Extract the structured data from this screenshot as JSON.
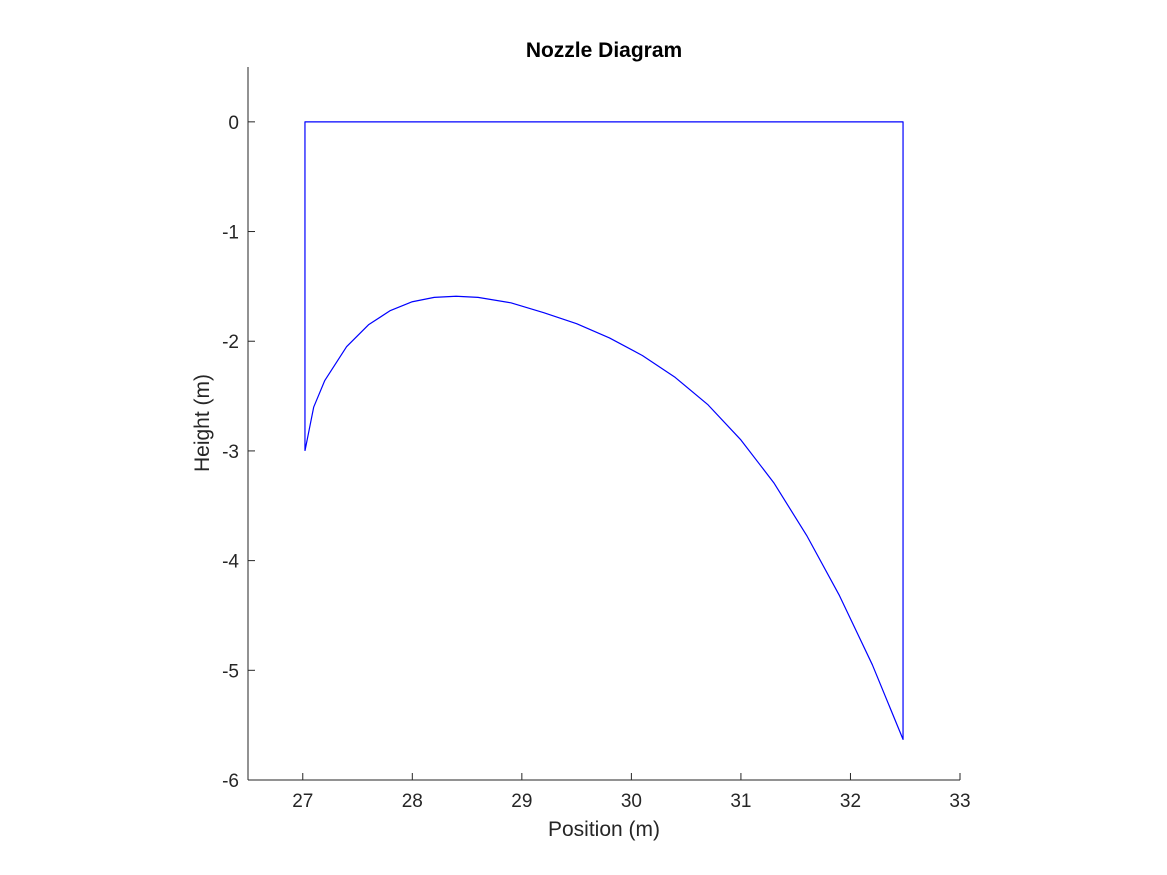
{
  "chart_data": {
    "type": "line",
    "title": "Nozzle Diagram",
    "xlabel": "Position (m)",
    "ylabel": "Height (m)",
    "xlim": [
      26.5,
      33
    ],
    "ylim": [
      -6,
      0.5
    ],
    "xticks": [
      27,
      28,
      29,
      30,
      31,
      32,
      33
    ],
    "yticks": [
      0,
      -1,
      -2,
      -3,
      -4,
      -5,
      -6
    ],
    "xtick_labels": [
      "27",
      "28",
      "29",
      "30",
      "31",
      "32",
      "33"
    ],
    "ytick_labels": [
      "0",
      "-1",
      "-2",
      "-3",
      "-4",
      "-5",
      "-6"
    ],
    "grid": false,
    "series": [
      {
        "color": "#0000ff",
        "x": [
          27.02,
          27.02,
          32.48,
          32.48,
          32.2,
          31.9,
          31.6,
          31.3,
          31.0,
          30.7,
          30.4,
          30.1,
          29.8,
          29.5,
          29.2,
          28.9,
          28.6,
          28.4,
          28.2,
          28.0,
          27.8,
          27.6,
          27.4,
          27.2,
          27.1,
          27.02
        ],
        "y": [
          -3.0,
          0.0,
          0.0,
          -5.63,
          -4.95,
          -4.32,
          -3.77,
          -3.29,
          -2.9,
          -2.58,
          -2.33,
          -2.13,
          -1.97,
          -1.84,
          -1.74,
          -1.65,
          -1.6,
          -1.59,
          -1.6,
          -1.64,
          -1.72,
          -1.85,
          -2.05,
          -2.36,
          -2.6,
          -3.0
        ]
      }
    ]
  }
}
